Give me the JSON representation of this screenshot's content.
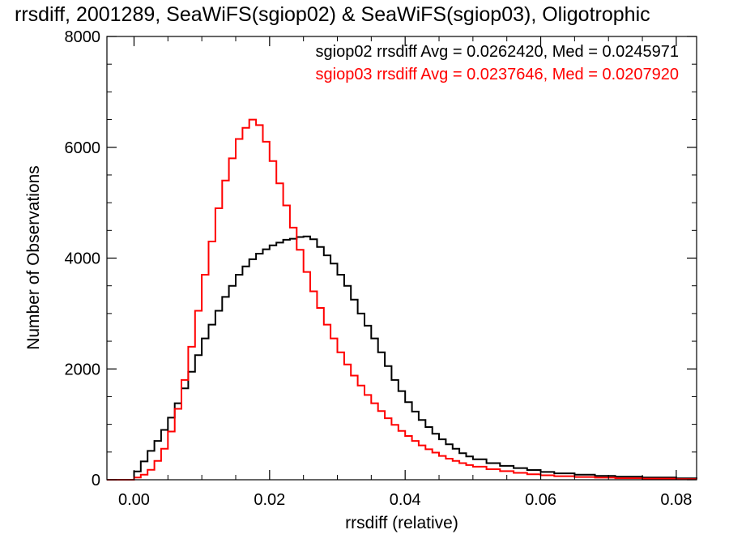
{
  "chart_data": {
    "type": "line",
    "title": "rrsdiff, 2001289, SeaWiFS(sgiop02) & SeaWiFS(sgiop03), Oligotrophic",
    "xlabel": "rrsdiff (relative)",
    "ylabel": "Number of Observations",
    "xlim": [
      -0.004,
      0.083
    ],
    "ylim": [
      0,
      8000
    ],
    "xticks": [
      0.0,
      0.02,
      0.04,
      0.06,
      0.08
    ],
    "xtick_labels": [
      "0.00",
      "0.02",
      "0.04",
      "0.06",
      "0.08"
    ],
    "yticks": [
      0,
      2000,
      4000,
      6000,
      8000
    ],
    "ytick_labels": [
      "0",
      "2000",
      "4000",
      "6000",
      "8000"
    ],
    "grid": false,
    "step": true,
    "annotations": [
      {
        "text": "sgiop02 rrsdiff Avg = 0.0262420, Med = 0.0245971",
        "color": "#000000"
      },
      {
        "text": "sgiop03 rrsdiff Avg = 0.0237646, Med = 0.0207920",
        "color": "#ff0000"
      }
    ],
    "series": [
      {
        "color": "#000000",
        "x": [
          -0.004,
          -0.0005,
          0.0,
          0.001,
          0.002,
          0.003,
          0.004,
          0.005,
          0.006,
          0.007,
          0.008,
          0.009,
          0.01,
          0.011,
          0.012,
          0.013,
          0.014,
          0.015,
          0.016,
          0.017,
          0.018,
          0.019,
          0.02,
          0.021,
          0.022,
          0.023,
          0.024,
          0.025,
          0.026,
          0.027,
          0.028,
          0.029,
          0.03,
          0.031,
          0.032,
          0.033,
          0.034,
          0.035,
          0.036,
          0.037,
          0.038,
          0.039,
          0.04,
          0.041,
          0.042,
          0.043,
          0.044,
          0.045,
          0.046,
          0.047,
          0.048,
          0.049,
          0.05,
          0.052,
          0.054,
          0.056,
          0.058,
          0.06,
          0.062,
          0.065,
          0.068,
          0.071,
          0.075,
          0.08,
          0.083
        ],
        "y": [
          0,
          0,
          150,
          330,
          520,
          700,
          900,
          1120,
          1380,
          1650,
          1950,
          2250,
          2550,
          2800,
          3050,
          3300,
          3500,
          3700,
          3850,
          3980,
          4080,
          4160,
          4230,
          4280,
          4330,
          4350,
          4380,
          4390,
          4340,
          4200,
          4050,
          3900,
          3700,
          3500,
          3250,
          3000,
          2780,
          2550,
          2300,
          2050,
          1800,
          1600,
          1400,
          1230,
          1080,
          950,
          830,
          730,
          640,
          560,
          480,
          420,
          370,
          300,
          250,
          210,
          175,
          140,
          115,
          90,
          70,
          55,
          40,
          25,
          15
        ]
      },
      {
        "color": "#ff0000",
        "x": [
          -0.004,
          0.0,
          0.001,
          0.002,
          0.003,
          0.004,
          0.005,
          0.006,
          0.007,
          0.008,
          0.009,
          0.01,
          0.011,
          0.012,
          0.013,
          0.014,
          0.015,
          0.016,
          0.017,
          0.018,
          0.019,
          0.02,
          0.021,
          0.022,
          0.023,
          0.024,
          0.025,
          0.026,
          0.027,
          0.028,
          0.029,
          0.03,
          0.031,
          0.032,
          0.033,
          0.034,
          0.035,
          0.036,
          0.037,
          0.038,
          0.039,
          0.04,
          0.041,
          0.042,
          0.043,
          0.044,
          0.045,
          0.046,
          0.047,
          0.048,
          0.049,
          0.05,
          0.052,
          0.054,
          0.056,
          0.058,
          0.06,
          0.062,
          0.065,
          0.068,
          0.071,
          0.075,
          0.08,
          0.083
        ],
        "y": [
          0,
          40,
          90,
          180,
          340,
          560,
          870,
          1280,
          1800,
          2400,
          3050,
          3700,
          4300,
          4900,
          5400,
          5800,
          6150,
          6350,
          6500,
          6400,
          6100,
          5750,
          5350,
          4950,
          4550,
          4150,
          3750,
          3400,
          3100,
          2800,
          2550,
          2300,
          2080,
          1880,
          1700,
          1530,
          1380,
          1240,
          1110,
          990,
          880,
          790,
          700,
          620,
          550,
          490,
          430,
          380,
          340,
          300,
          265,
          235,
          190,
          155,
          125,
          100,
          80,
          65,
          50,
          38,
          28,
          20,
          12,
          8
        ]
      }
    ]
  }
}
